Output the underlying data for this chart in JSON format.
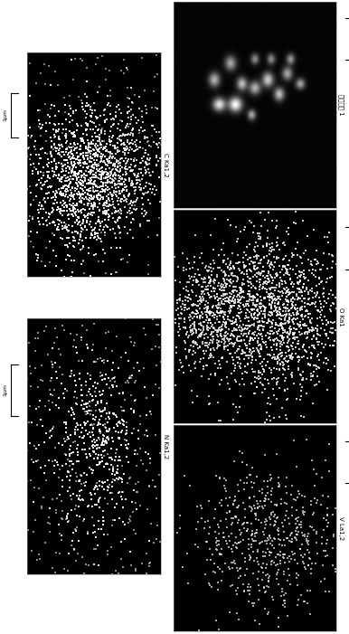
{
  "fig_width": 3.86,
  "fig_height": 7.01,
  "bg_color": "#ffffff",
  "panel_bg": "#000000",
  "panels": {
    "electron": {
      "label": "电子图像 1",
      "type": "electron"
    },
    "C": {
      "label": "C Ka1，2",
      "type": "edx_C"
    },
    "O": {
      "label": "O Ka1",
      "type": "edx_O"
    },
    "N": {
      "label": "N Ka1，2",
      "type": "edx_N"
    },
    "V": {
      "label": "V La1，2",
      "type": "edx_V"
    }
  },
  "scalebar_label": "1μm",
  "label_fontsize": 5,
  "scalebar_fontsize": 4.5
}
